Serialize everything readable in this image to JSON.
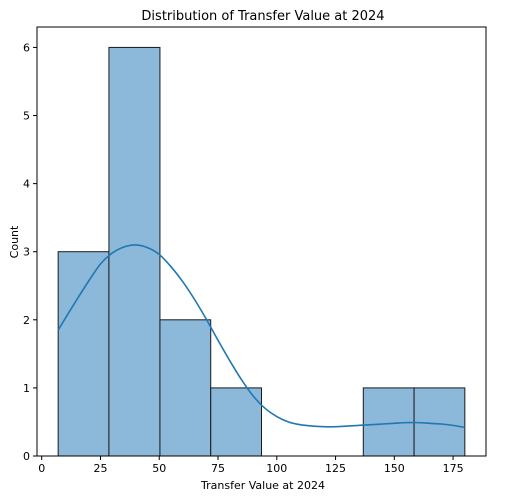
{
  "chart_data": {
    "type": "bar",
    "subtype": "histogram-with-kde",
    "title": "Distribution of Transfer Value at 2024",
    "xlabel": "Transfer Value at 2024",
    "ylabel": "Count",
    "xlim": [
      -2,
      189
    ],
    "ylim": [
      0,
      6.3
    ],
    "xticks": [
      0,
      25,
      50,
      75,
      100,
      125,
      150,
      175
    ],
    "yticks": [
      0,
      1,
      2,
      3,
      4,
      5,
      6
    ],
    "bins": [
      {
        "x0": 7.0,
        "x1": 28.6,
        "count": 3
      },
      {
        "x0": 28.6,
        "x1": 50.3,
        "count": 6
      },
      {
        "x0": 50.3,
        "x1": 71.9,
        "count": 2
      },
      {
        "x0": 71.9,
        "x1": 93.5,
        "count": 1
      },
      {
        "x0": 93.5,
        "x1": 115.1,
        "count": 0
      },
      {
        "x0": 115.1,
        "x1": 136.8,
        "count": 0
      },
      {
        "x0": 136.8,
        "x1": 158.4,
        "count": 1
      },
      {
        "x0": 158.4,
        "x1": 180.0,
        "count": 1
      }
    ],
    "kde": {
      "x": [
        7,
        15,
        20,
        25,
        30,
        35,
        40,
        45,
        50,
        55,
        60,
        65,
        70,
        75,
        80,
        85,
        90,
        95,
        100,
        105,
        110,
        115,
        120,
        125,
        130,
        135,
        140,
        145,
        150,
        155,
        160,
        165,
        170,
        175,
        180
      ],
      "y": [
        1.85,
        2.3,
        2.57,
        2.82,
        2.98,
        3.07,
        3.1,
        3.06,
        2.96,
        2.78,
        2.56,
        2.3,
        2.01,
        1.7,
        1.4,
        1.12,
        0.88,
        0.7,
        0.58,
        0.5,
        0.46,
        0.44,
        0.43,
        0.43,
        0.44,
        0.45,
        0.46,
        0.47,
        0.48,
        0.49,
        0.49,
        0.48,
        0.47,
        0.45,
        0.42
      ]
    },
    "grid": false,
    "legend": "none",
    "colors": {
      "bar_fill": "#8cb8d9",
      "bar_edge": "#1a1a1a",
      "kde_line": "#1f77b4"
    }
  }
}
